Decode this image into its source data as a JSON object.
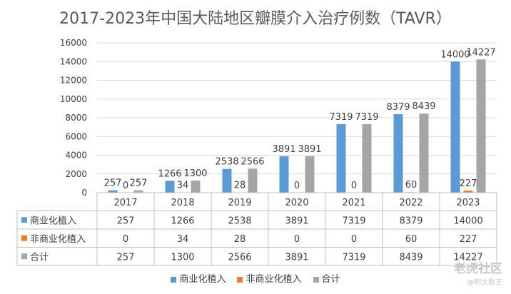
{
  "chart_data": {
    "type": "bar",
    "title": "2017-2023年中国大陆地区瓣膜介入治疗例数（TAVR）",
    "categories": [
      "2017",
      "2018",
      "2019",
      "2020",
      "2021",
      "2022",
      "2023"
    ],
    "series": [
      {
        "name": "商业化植入",
        "color": "#5B9BD5",
        "values": [
          257,
          1266,
          2538,
          3891,
          7319,
          8379,
          14000
        ]
      },
      {
        "name": "非商业化植入",
        "color": "#ED7D31",
        "values": [
          0,
          34,
          28,
          0,
          0,
          60,
          227
        ]
      },
      {
        "name": "合计",
        "color": "#A5A5A5",
        "values": [
          257,
          1300,
          2566,
          3891,
          7319,
          8439,
          14227
        ]
      }
    ],
    "ylim": [
      0,
      16000
    ],
    "yticks": [
      0,
      2000,
      4000,
      6000,
      8000,
      10000,
      12000,
      14000,
      16000
    ],
    "grid": true,
    "legend": "bottom",
    "data_table": true,
    "xlabel": "",
    "ylabel": ""
  },
  "watermark": {
    "main": "老虎社区",
    "sub": "@明大数王"
  }
}
